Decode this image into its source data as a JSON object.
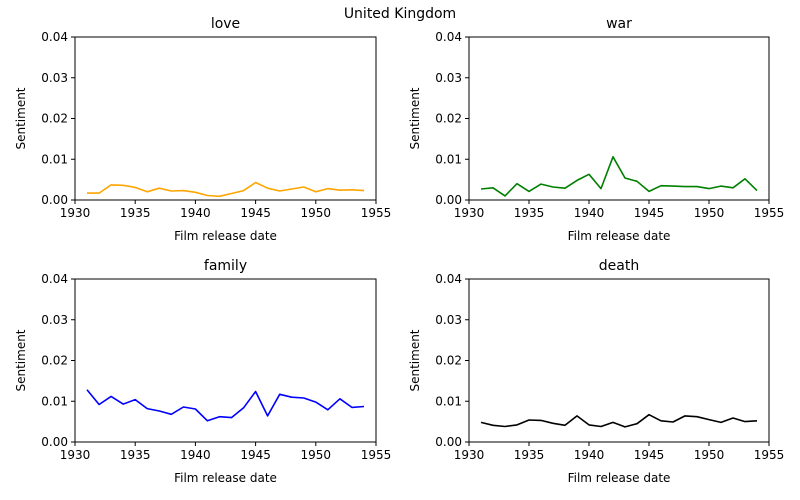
{
  "figure": {
    "title": "United Kingdom"
  },
  "chart_data": [
    {
      "type": "line",
      "title": "love",
      "xlabel": "Film release date",
      "ylabel": "Sentiment",
      "xlim": [
        1930,
        1955
      ],
      "ylim": [
        0,
        0.04
      ],
      "xticks": [
        1930,
        1935,
        1940,
        1945,
        1950,
        1955
      ],
      "yticks": [
        0.0,
        0.01,
        0.02,
        0.03,
        0.04
      ],
      "ytick_labels": [
        "0.00",
        "0.01",
        "0.02",
        "0.03",
        "0.04"
      ],
      "grid": false,
      "color": "#ffa500",
      "x": [
        1931,
        1932,
        1933,
        1934,
        1935,
        1936,
        1937,
        1938,
        1939,
        1940,
        1941,
        1942,
        1943,
        1944,
        1945,
        1946,
        1947,
        1948,
        1949,
        1950,
        1951,
        1952,
        1953,
        1954
      ],
      "y": [
        0.0017,
        0.0017,
        0.0037,
        0.0036,
        0.0031,
        0.002,
        0.0029,
        0.0022,
        0.0023,
        0.0019,
        0.0011,
        0.0009,
        0.0016,
        0.0023,
        0.0043,
        0.0029,
        0.0022,
        0.0027,
        0.0032,
        0.002,
        0.0028,
        0.0024,
        0.0025,
        0.0023
      ]
    },
    {
      "type": "line",
      "title": "war",
      "xlabel": "Film release date",
      "ylabel": "Sentiment",
      "xlim": [
        1930,
        1955
      ],
      "ylim": [
        0,
        0.04
      ],
      "xticks": [
        1930,
        1935,
        1940,
        1945,
        1950,
        1955
      ],
      "yticks": [
        0.0,
        0.01,
        0.02,
        0.03,
        0.04
      ],
      "ytick_labels": [
        "0.00",
        "0.01",
        "0.02",
        "0.03",
        "0.04"
      ],
      "grid": false,
      "color": "#008000",
      "x": [
        1931,
        1932,
        1933,
        1934,
        1935,
        1936,
        1937,
        1938,
        1939,
        1940,
        1941,
        1942,
        1943,
        1944,
        1945,
        1946,
        1947,
        1948,
        1949,
        1950,
        1951,
        1952,
        1953,
        1954
      ],
      "y": [
        0.0027,
        0.003,
        0.001,
        0.004,
        0.0021,
        0.0039,
        0.0032,
        0.0029,
        0.0048,
        0.0063,
        0.0028,
        0.0106,
        0.0054,
        0.0046,
        0.0021,
        0.0035,
        0.0034,
        0.0033,
        0.0033,
        0.0028,
        0.0034,
        0.003,
        0.0052,
        0.0023
      ]
    },
    {
      "type": "line",
      "title": "family",
      "xlabel": "Film release date",
      "ylabel": "Sentiment",
      "xlim": [
        1930,
        1955
      ],
      "ylim": [
        0,
        0.04
      ],
      "xticks": [
        1930,
        1935,
        1940,
        1945,
        1950,
        1955
      ],
      "yticks": [
        0.0,
        0.01,
        0.02,
        0.03,
        0.04
      ],
      "ytick_labels": [
        "0.00",
        "0.01",
        "0.02",
        "0.03",
        "0.04"
      ],
      "grid": false,
      "color": "#0000ff",
      "x": [
        1931,
        1932,
        1933,
        1934,
        1935,
        1936,
        1937,
        1938,
        1939,
        1940,
        1941,
        1942,
        1943,
        1944,
        1945,
        1946,
        1947,
        1948,
        1949,
        1950,
        1951,
        1952,
        1953,
        1954
      ],
      "y": [
        0.0128,
        0.0092,
        0.0112,
        0.0093,
        0.0104,
        0.0082,
        0.0076,
        0.0068,
        0.0086,
        0.0081,
        0.0052,
        0.0062,
        0.006,
        0.0084,
        0.0124,
        0.0064,
        0.0117,
        0.011,
        0.0108,
        0.0098,
        0.0079,
        0.0106,
        0.0085,
        0.0087
      ]
    },
    {
      "type": "line",
      "title": "death",
      "xlabel": "Film release date",
      "ylabel": "Sentiment",
      "xlim": [
        1930,
        1955
      ],
      "ylim": [
        0,
        0.04
      ],
      "xticks": [
        1930,
        1935,
        1940,
        1945,
        1950,
        1955
      ],
      "yticks": [
        0.0,
        0.01,
        0.02,
        0.03,
        0.04
      ],
      "ytick_labels": [
        "0.00",
        "0.01",
        "0.02",
        "0.03",
        "0.04"
      ],
      "grid": false,
      "color": "#000000",
      "x": [
        1931,
        1932,
        1933,
        1934,
        1935,
        1936,
        1937,
        1938,
        1939,
        1940,
        1941,
        1942,
        1943,
        1944,
        1945,
        1946,
        1947,
        1948,
        1949,
        1950,
        1951,
        1952,
        1953,
        1954
      ],
      "y": [
        0.0048,
        0.0041,
        0.0038,
        0.0042,
        0.0054,
        0.0053,
        0.0046,
        0.0041,
        0.0064,
        0.0042,
        0.0038,
        0.0048,
        0.0037,
        0.0045,
        0.0067,
        0.0052,
        0.0049,
        0.0064,
        0.0062,
        0.0055,
        0.0048,
        0.0059,
        0.005,
        0.0052
      ]
    }
  ]
}
